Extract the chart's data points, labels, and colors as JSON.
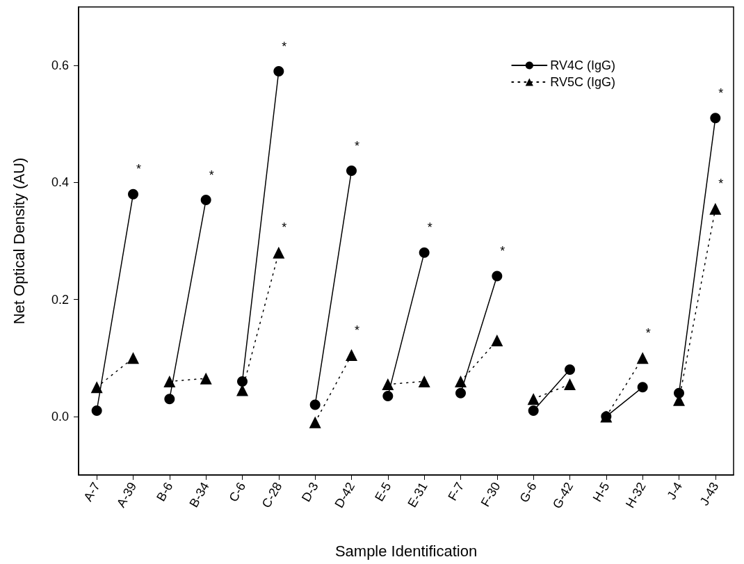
{
  "chart_data": {
    "type": "line",
    "xlabel": "Sample Identification",
    "ylabel": "Net Optical Density (AU)",
    "categories": [
      "A-7",
      "A-39",
      "B-6",
      "B-34",
      "C-6",
      "C-28",
      "D-3",
      "D-42",
      "E-5",
      "E-31",
      "F-7",
      "F-30",
      "G-6",
      "G-42",
      "H-5",
      "H-32",
      "J-4",
      "J-43"
    ],
    "ylim": [
      -0.1,
      0.7
    ],
    "yticks": [
      {
        "value": 0,
        "label": "0.0"
      },
      {
        "value": 0.2,
        "label": "0.2"
      },
      {
        "value": 0.4,
        "label": "0.4"
      },
      {
        "value": 0.6,
        "label": "0.6"
      }
    ],
    "legend": "top right",
    "series": [
      {
        "name": "RV4C (IgG)",
        "color": "#000000",
        "marker": "circle",
        "line_style": "solid",
        "values": [
          0.01,
          0.38,
          0.03,
          0.37,
          0.06,
          0.59,
          0.02,
          0.42,
          0.035,
          0.28,
          0.04,
          0.24,
          0.01,
          0.08,
          0.0,
          0.05,
          0.04,
          0.51
        ]
      },
      {
        "name": "RV5C (IgG)",
        "color": "#000000",
        "marker": "triangle",
        "line_style": "dotted",
        "values": [
          0.05,
          0.1,
          0.06,
          0.065,
          0.045,
          0.28,
          -0.01,
          0.105,
          0.055,
          0.06,
          0.06,
          0.13,
          0.03,
          0.055,
          0.0,
          0.1,
          0.028,
          0.355
        ]
      }
    ],
    "annotations": [
      {
        "text": "*",
        "x": "A-39",
        "y": 0.38
      },
      {
        "text": "*",
        "x": "B-34",
        "y": 0.37
      },
      {
        "text": "*",
        "x": "C-28",
        "y": 0.59
      },
      {
        "text": "*",
        "x": "C-28",
        "y": 0.28
      },
      {
        "text": "*",
        "x": "D-42",
        "y": 0.42
      },
      {
        "text": "*",
        "x": "D-42",
        "y": 0.105
      },
      {
        "text": "*",
        "x": "E-31",
        "y": 0.28
      },
      {
        "text": "*",
        "x": "F-30",
        "y": 0.24
      },
      {
        "text": "*",
        "x": "H-32",
        "y": 0.1
      },
      {
        "text": "*",
        "x": "J-43",
        "y": 0.51
      },
      {
        "text": "*",
        "x": "J-43",
        "y": 0.355
      }
    ]
  }
}
